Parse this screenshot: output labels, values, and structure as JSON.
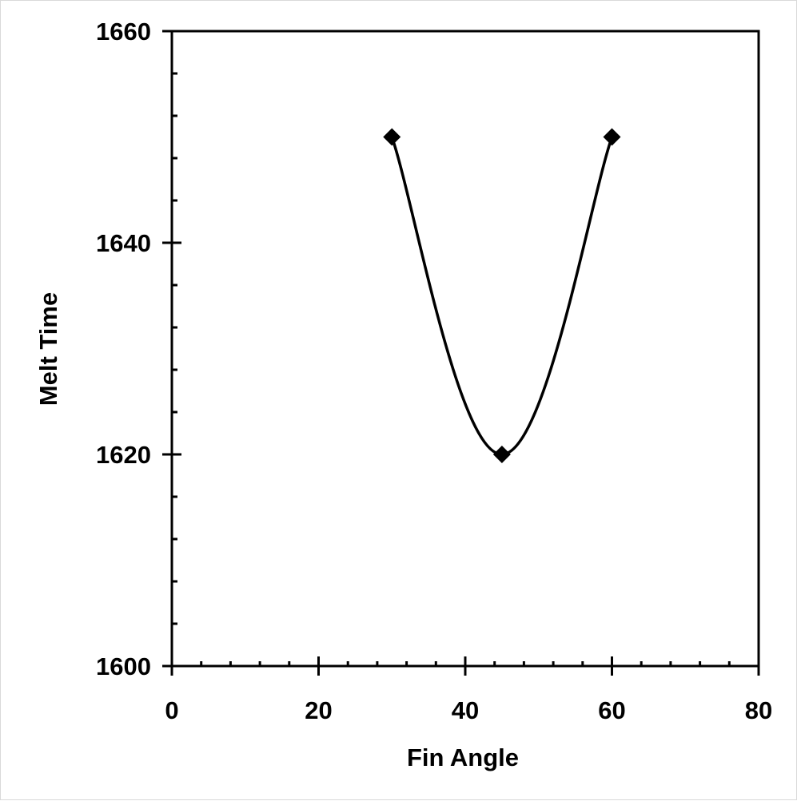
{
  "chart_data": {
    "type": "scatter",
    "title": "",
    "xlabel": "Fin Angle",
    "ylabel": "Melt Time",
    "xlim": [
      0,
      80
    ],
    "ylim": [
      1600,
      1660
    ],
    "x_major_ticks": [
      0,
      20,
      40,
      60,
      80
    ],
    "y_major_ticks": [
      1600,
      1620,
      1640,
      1660
    ],
    "x_tick_labels": [
      "0",
      "20",
      "40",
      "60",
      "80"
    ],
    "y_tick_labels": [
      "1600",
      "1620",
      "1640",
      "1660"
    ],
    "x_minor_step": 4,
    "y_minor_step": 4,
    "grid": false,
    "legend": "none",
    "series": [
      {
        "marker": "diamond",
        "line": "smooth",
        "color": "#000000",
        "points": [
          {
            "x": 30,
            "y": 1650
          },
          {
            "x": 45,
            "y": 1620
          },
          {
            "x": 60,
            "y": 1650
          }
        ]
      }
    ]
  }
}
